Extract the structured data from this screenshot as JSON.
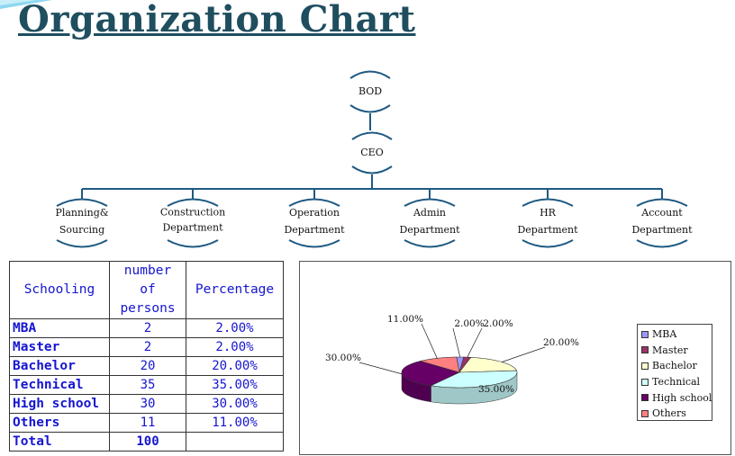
{
  "title": "Organization Chart",
  "org": {
    "top": {
      "label": "BOD"
    },
    "ceo": {
      "label": "CEO"
    },
    "departments": [
      {
        "line1": "Planning&",
        "line2": "Sourcing"
      },
      {
        "line1": "Construction",
        "line2": "Department"
      },
      {
        "line1": "Operation",
        "line2": "Department"
      },
      {
        "line1": "Admin",
        "line2": "Department"
      },
      {
        "line1": "HR",
        "line2": "Department"
      },
      {
        "line1": "Account",
        "line2": "Department"
      }
    ]
  },
  "table": {
    "headers": [
      "Schooling",
      "number of persons",
      "Percentage"
    ],
    "rows": [
      {
        "schooling": "MBA",
        "persons": "2",
        "percentage": "2.00%"
      },
      {
        "schooling": "Master",
        "persons": "2",
        "percentage": "2.00%"
      },
      {
        "schooling": "Bachelor",
        "persons": "20",
        "percentage": "20.00%"
      },
      {
        "schooling": "Technical",
        "persons": "35",
        "percentage": "35.00%"
      },
      {
        "schooling": "High school",
        "persons": "30",
        "percentage": "30.00%"
      },
      {
        "schooling": "Others",
        "persons": "11",
        "percentage": "11.00%"
      }
    ],
    "total": {
      "label": "Total",
      "persons": "100",
      "percentage": ""
    }
  },
  "chart_data": {
    "type": "pie",
    "style": "3d",
    "categories": [
      "MBA",
      "Master",
      "Bachelor",
      "Technical",
      "High school",
      "Others"
    ],
    "values": [
      2,
      2,
      20,
      35,
      30,
      11
    ],
    "labels": [
      "2.00%",
      "2.00%",
      "20.00%",
      "35.00%",
      "30.00%",
      "11.00%"
    ],
    "colors": [
      "#9999ff",
      "#993366",
      "#ffffcc",
      "#ccffff",
      "#660066",
      "#ff8080"
    ],
    "legend_position": "right"
  }
}
